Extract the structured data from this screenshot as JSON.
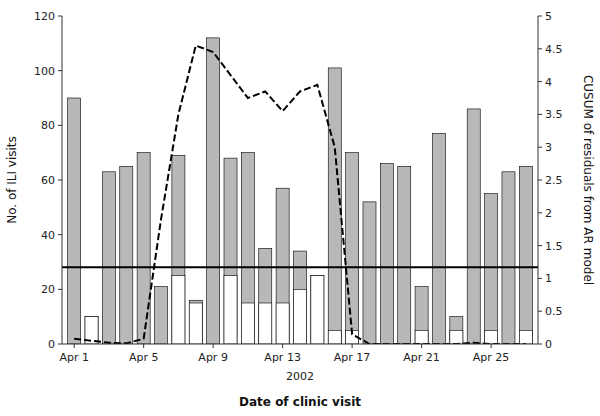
{
  "chart_data": {
    "type": "bar",
    "categories": [
      "Apr 1",
      null,
      null,
      null,
      "Apr 5",
      null,
      null,
      null,
      "Apr 9",
      null,
      null,
      null,
      "Apr 13",
      null,
      null,
      null,
      "Apr 17",
      null,
      null,
      null,
      "Apr 21",
      null,
      null,
      null,
      "Apr 25",
      null,
      null
    ],
    "series": [
      {
        "type": "bar",
        "color": "#b8b8b8",
        "values": [
          90,
          10,
          63,
          65,
          70,
          21,
          69,
          16,
          112,
          68,
          70,
          35,
          57,
          34,
          25,
          101,
          70,
          52,
          66,
          65,
          21,
          77,
          10,
          86,
          55,
          63,
          65
        ]
      },
      {
        "type": "bar",
        "color": "#ffffff",
        "values": [
          0,
          10,
          0,
          0,
          0,
          0,
          25,
          15,
          0,
          25,
          15,
          15,
          15,
          20,
          25,
          5,
          5,
          0,
          0,
          0,
          5,
          0,
          5,
          0,
          5,
          0,
          5
        ]
      },
      {
        "type": "line",
        "axis": "y2",
        "color": "#000000",
        "line_style": "dashed",
        "values": [
          0.08,
          0.05,
          0.02,
          0.01,
          0.08,
          1.9,
          3.5,
          4.55,
          4.45,
          4.1,
          3.75,
          3.85,
          3.55,
          3.85,
          3.95,
          3.0,
          0.15,
          0.0,
          0.0,
          0.0,
          0.0,
          0.0,
          0.0,
          0.02,
          0.0,
          0.0,
          0.0
        ]
      }
    ],
    "threshold": {
      "value": 1.17,
      "axis": "y2",
      "color": "#000000"
    },
    "stacked": false,
    "grid": false,
    "ylim": [
      0,
      120
    ],
    "yticks": [
      0,
      20,
      40,
      60,
      80,
      100,
      120
    ],
    "y2lim": [
      0,
      5
    ],
    "y2ticks": [
      0,
      0.5,
      1,
      1.5,
      2,
      2.5,
      3,
      3.5,
      4,
      4.5,
      5
    ],
    "y_label": "No. of ILI visits",
    "y2_label": "CUSUM of residuals from AR model",
    "x_label": "Date of clinic visit",
    "annotations": [
      "2002"
    ]
  }
}
